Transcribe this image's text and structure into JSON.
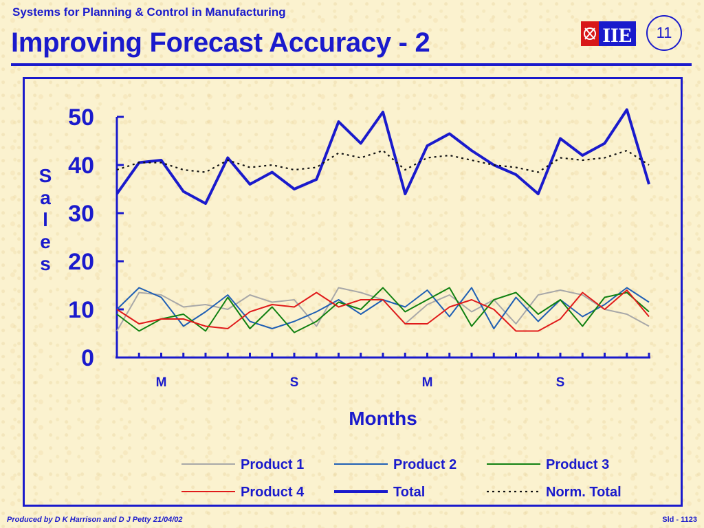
{
  "header": {
    "subtitle": "Systems for Planning & Control in Manufacturing",
    "title": "Improving Forecast Accuracy - 2",
    "slide_number": "11",
    "logo_text": "IIE"
  },
  "footer": {
    "credit": "Produced by D K Harrison and D J Petty 21/04/02",
    "slide_id": "Sld - 1123"
  },
  "colors": {
    "accent": "#1a1acc",
    "product1": "#a8a8a8",
    "product2": "#1f5fb4",
    "product3": "#108010",
    "product4": "#e01a1a",
    "total": "#1a1acc",
    "norm_total": "#111111"
  },
  "chart_data": {
    "type": "line",
    "title": "",
    "xlabel": "Months",
    "ylabel": "Sales",
    "ylim": [
      0,
      50
    ],
    "yticks": [
      0,
      10,
      20,
      30,
      40,
      50
    ],
    "x_tick_labels": [
      {
        "index": 3,
        "label": "M"
      },
      {
        "index": 9,
        "label": "S"
      },
      {
        "index": 15,
        "label": "M"
      },
      {
        "index": 21,
        "label": "S"
      }
    ],
    "x": [
      1,
      2,
      3,
      4,
      5,
      6,
      7,
      8,
      9,
      10,
      11,
      12,
      13,
      14,
      15,
      16,
      17,
      18,
      19,
      20,
      21,
      22,
      23,
      24,
      25
    ],
    "legend_position": "bottom",
    "series": [
      {
        "name": "Product 1",
        "style": "thin",
        "values": [
          5.5,
          13.5,
          13,
          10.5,
          11,
          10,
          13,
          11.5,
          12,
          6.5,
          14.5,
          13.5,
          12,
          7,
          11,
          13,
          9.5,
          12,
          7,
          13,
          14,
          13,
          10,
          9,
          6.5
        ]
      },
      {
        "name": "Product 2",
        "style": "thin",
        "values": [
          10,
          14.5,
          12.5,
          6.5,
          9.5,
          13,
          7.5,
          6,
          7.5,
          9.5,
          12,
          9,
          12,
          10.5,
          14,
          8.5,
          14.5,
          6,
          12.5,
          7.5,
          12,
          8.5,
          11,
          14.5,
          11.5
        ]
      },
      {
        "name": "Product 3",
        "style": "thin",
        "values": [
          9,
          5.5,
          8,
          9,
          5.5,
          12.5,
          6,
          10.5,
          5.2,
          7.5,
          11.5,
          10,
          14.5,
          9.5,
          12,
          14.5,
          6.5,
          12,
          13.5,
          9,
          12,
          6.5,
          12.5,
          13.5,
          9.5
        ]
      },
      {
        "name": "Product 4",
        "style": "thin",
        "values": [
          10,
          7,
          8,
          8,
          6.5,
          6,
          9.5,
          11,
          10.5,
          13.5,
          10.5,
          12,
          12,
          7,
          7,
          10.5,
          12,
          10,
          5.5,
          5.5,
          8,
          13.5,
          10,
          14,
          8.5
        ]
      },
      {
        "name": "Total",
        "style": "thick",
        "values": [
          34,
          40.5,
          41,
          34.5,
          32,
          41.5,
          36,
          38.5,
          35,
          37,
          49,
          44.5,
          51,
          34,
          44,
          46.5,
          43,
          40,
          38,
          34,
          45.5,
          42,
          44.5,
          51.5,
          36
        ]
      },
      {
        "name": "Norm. Total",
        "style": "dotted",
        "values": [
          39,
          40.5,
          40.5,
          39,
          38.5,
          41,
          39.5,
          40,
          39,
          39.5,
          42.5,
          41.5,
          43,
          39,
          41.5,
          42,
          41,
          40,
          39.5,
          38.5,
          41.5,
          41,
          41.5,
          43,
          40
        ]
      }
    ]
  }
}
